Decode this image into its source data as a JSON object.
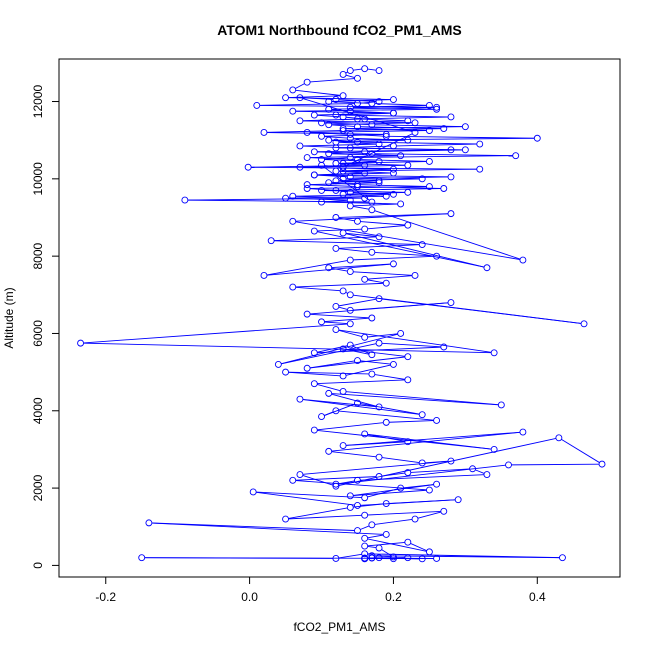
{
  "chart_data": {
    "type": "line",
    "title": "ATOM1 Northbound fCO2_PM1_AMS",
    "xlabel": "fCO2_PM1_AMS",
    "ylabel": "Altitude (m)",
    "xlim": [
      -0.265,
      0.515
    ],
    "ylim": [
      -300,
      13100
    ],
    "xticks": [
      -0.2,
      0.0,
      0.2,
      0.4
    ],
    "xtick_labels": [
      "-0.2",
      "0.0",
      "0.2",
      "0.4"
    ],
    "yticks": [
      0,
      2000,
      4000,
      6000,
      8000,
      10000,
      12000
    ],
    "ytick_labels": [
      "0",
      "2000",
      "4000",
      "6000",
      "8000",
      "10000",
      "12000"
    ],
    "grid": false,
    "marker": "open-circle",
    "color": "#0000ff",
    "series": [
      {
        "x": [
          0.16,
          0.16,
          0.17,
          0.18,
          0.16,
          0.2,
          0.16,
          0.22,
          0.17,
          0.24,
          0.16,
          0.26,
          -0.15,
          0.12,
          0.16,
          0.435,
          0.17,
          0.2,
          0.18,
          0.16,
          0.22,
          0.25,
          0.16,
          0.19,
          -0.14,
          0.15,
          0.17,
          0.23,
          0.27,
          0.16,
          0.05,
          0.14,
          0.19,
          0.29,
          0.15,
          0.005,
          0.16,
          0.21,
          0.26,
          0.14,
          0.25,
          0.06,
          0.18,
          0.22,
          0.31,
          0.33,
          0.15,
          0.12,
          0.36,
          0.49,
          0.43,
          0.12,
          0.07,
          0.28,
          0.24,
          0.18,
          0.11,
          0.38,
          0.13,
          0.22,
          0.16,
          0.34,
          0.09,
          0.19,
          0.26,
          0.12,
          0.1,
          0.15,
          0.24,
          0.07,
          0.18,
          0.11,
          0.35,
          0.13,
          0.09,
          0.22,
          0.17,
          0.05,
          0.13,
          0.2,
          0.15,
          0.08,
          0.22,
          0.13,
          0.17,
          0.14,
          0.09,
          0.27,
          0.18,
          0.04,
          0.21,
          0.16,
          0.12,
          0.34,
          -0.235,
          0.14,
          0.1,
          0.17,
          0.08,
          0.28,
          0.14,
          0.12,
          0.18,
          0.465,
          0.14,
          0.13,
          0.06,
          0.19,
          0.16,
          0.23,
          0.14,
          0.11,
          0.2,
          0.02,
          0.14,
          0.26,
          0.17,
          0.12,
          0.24,
          0.03,
          0.18,
          0.13,
          0.33,
          0.09,
          0.16,
          0.22,
          0.15,
          0.12,
          0.28,
          0.06,
          0.38,
          0.17,
          0.14,
          0.21,
          0.1,
          0.14,
          0.05,
          0.19,
          0.13,
          0.22,
          0.1,
          0.27,
          0.15,
          0.08,
          0.18,
          0.12,
          0.24,
          0.14,
          0.09,
          0.2,
          0.13,
          0.32,
          -0.002,
          0.16,
          0.12,
          0.25,
          0.15,
          0.08,
          0.21,
          0.11,
          0.16,
          0.3,
          0.14,
          0.07,
          0.18,
          0.12,
          0.22,
          0.14,
          0.1,
          0.19,
          0.02,
          0.13,
          0.27,
          0.15,
          0.11,
          0.23,
          0.07,
          0.16,
          0.13,
          0.09,
          0.2,
          0.14,
          0.11,
          0.26,
          0.01,
          0.15,
          0.18,
          0.12,
          0.07,
          0.23,
          0.13,
          0.1,
          0.17,
          -0.09,
          0.16,
          0.06,
          0.2,
          0.14,
          0.12,
          0.08,
          0.25,
          0.15,
          0.11,
          0.18,
          0.13,
          0.28,
          0.09,
          0.16,
          0.12,
          0.2,
          0.07,
          0.22,
          0.13,
          0.18,
          0.1,
          0.14,
          0.37,
          0.17,
          0.09,
          0.28,
          0.12,
          0.2,
          0.32,
          0.15,
          0.11,
          0.4,
          0.19,
          0.14,
          0.08,
          0.25,
          0.13,
          0.3,
          0.17,
          0.1,
          0.22,
          0.15,
          0.28,
          0.12,
          0.2,
          0.06,
          0.26,
          0.14,
          0.25,
          0.17,
          0.11,
          0.2,
          0.05,
          0.13,
          0.06,
          0.08,
          0.15,
          0.13,
          0.14,
          0.16,
          0.18
        ],
        "y": [
          180,
          170,
          190,
          200,
          185,
          175,
          180,
          200,
          195,
          170,
          190,
          180,
          200,
          180,
          300,
          200,
          250,
          220,
          450,
          500,
          600,
          350,
          700,
          800,
          1100,
          900,
          1050,
          1200,
          1400,
          1300,
          1200,
          1500,
          1600,
          1700,
          1550,
          1900,
          1750,
          2000,
          2100,
          1800,
          1950,
          2200,
          2300,
          2400,
          2500,
          2350,
          2200,
          2100,
          2600,
          2620,
          3300,
          2050,
          2350,
          2700,
          2650,
          2800,
          2950,
          3450,
          3100,
          3200,
          3400,
          3000,
          3500,
          3700,
          3750,
          4000,
          3850,
          4200,
          3900,
          4300,
          4100,
          4450,
          4150,
          4500,
          4700,
          4800,
          4950,
          5000,
          4900,
          5200,
          5300,
          5100,
          5400,
          5600,
          5450,
          5700,
          5500,
          5650,
          5750,
          5200,
          6000,
          5900,
          6100,
          5500,
          5750,
          6250,
          6300,
          6400,
          6500,
          6800,
          6600,
          6700,
          6900,
          6250,
          7000,
          7100,
          7200,
          7300,
          7400,
          7500,
          7600,
          7700,
          7800,
          7500,
          7900,
          8000,
          8100,
          8200,
          8300,
          8400,
          8500,
          8600,
          7700,
          8650,
          8700,
          8800,
          8900,
          9000,
          9100,
          8900,
          7900,
          9200,
          9300,
          9350,
          9400,
          9450,
          9500,
          9550,
          9600,
          9650,
          9700,
          9750,
          9800,
          9850,
          9900,
          9950,
          10000,
          10050,
          10100,
          10150,
          10200,
          10250,
          10300,
          10350,
          10400,
          10450,
          10500,
          10550,
          10600,
          10650,
          10700,
          10750,
          10800,
          10850,
          10900,
          10950,
          11000,
          11050,
          11100,
          11150,
          11200,
          11250,
          11300,
          11350,
          11400,
          11450,
          11500,
          11550,
          11600,
          11650,
          11700,
          11750,
          11800,
          11850,
          11900,
          11950,
          12000,
          12050,
          12100,
          11200,
          10300,
          10350,
          9400,
          9450,
          9500,
          9550,
          9600,
          9650,
          9700,
          9750,
          9800,
          9850,
          9900,
          9950,
          10000,
          10050,
          10100,
          10150,
          10200,
          10250,
          10300,
          10350,
          10400,
          10450,
          10500,
          10550,
          10600,
          10650,
          10700,
          10750,
          10800,
          10850,
          10900,
          10950,
          11000,
          11050,
          11100,
          11150,
          11200,
          11250,
          11300,
          11350,
          11400,
          11450,
          11500,
          11550,
          11600,
          11650,
          11700,
          11750,
          11800,
          11850,
          11900,
          11950,
          12000,
          12050,
          12100,
          12150,
          12300,
          12500,
          12600,
          12700,
          12800,
          12850,
          12800
        ]
      }
    ]
  }
}
